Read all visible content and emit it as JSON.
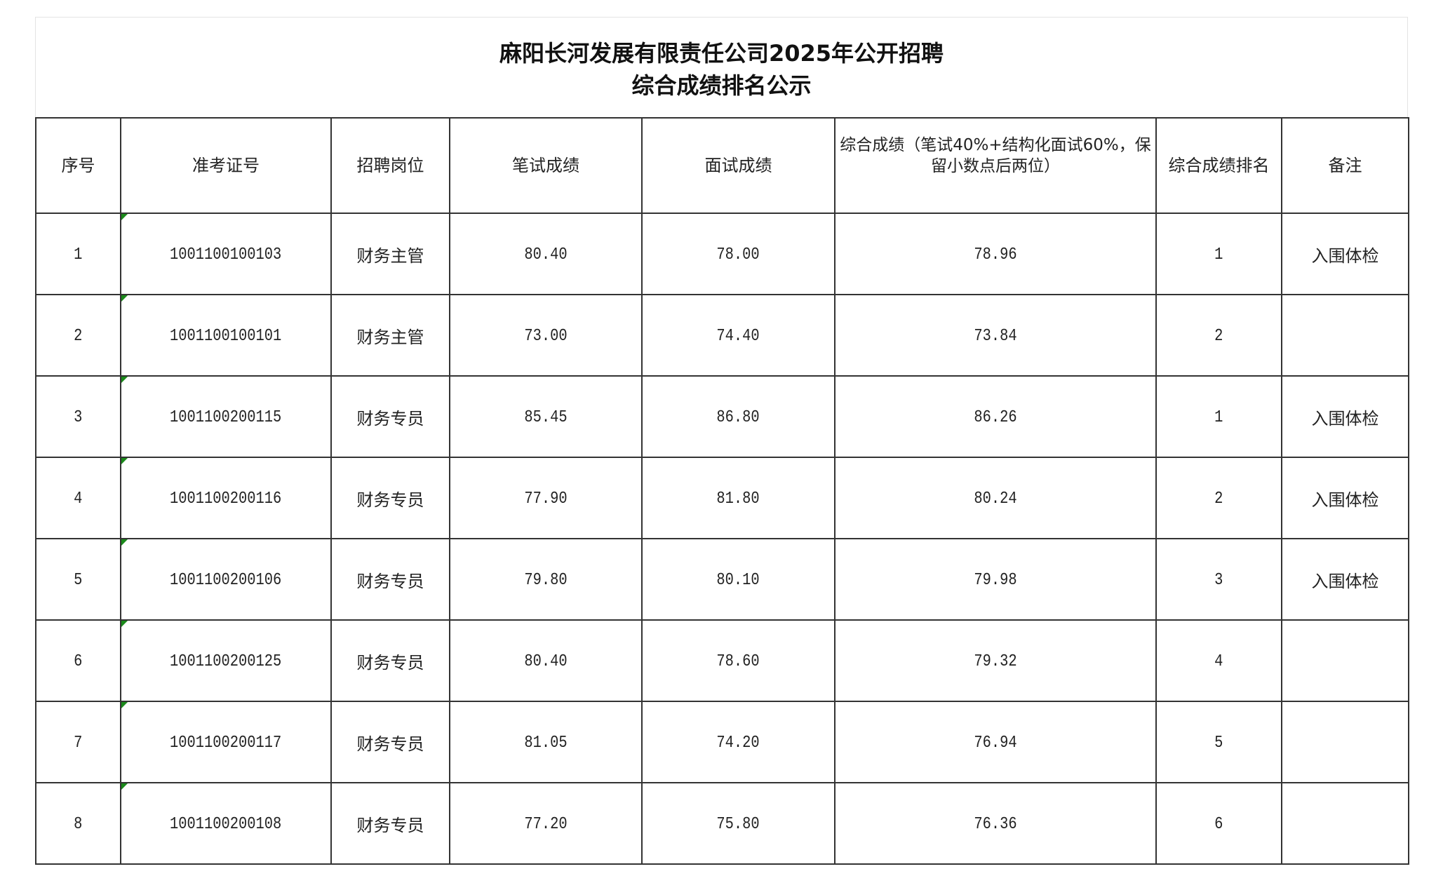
{
  "title": {
    "line1": "麻阳长河发展有限责任公司2025年公开招聘",
    "line2": "综合成绩排名公示"
  },
  "columns": [
    "序号",
    "准考证号",
    "招聘岗位",
    "笔试成绩",
    "面试成绩",
    "综合成绩（笔试40%+结构化面试60%，保留小数点后两位）",
    "综合成绩排名",
    "备注"
  ],
  "rows": [
    {
      "no": "1",
      "id": "1001100100103",
      "post": "财务主管",
      "written": "80.40",
      "interview": "78.00",
      "total": "78.96",
      "rank": "1",
      "note": "入围体检"
    },
    {
      "no": "2",
      "id": "1001100100101",
      "post": "财务主管",
      "written": "73.00",
      "interview": "74.40",
      "total": "73.84",
      "rank": "2",
      "note": ""
    },
    {
      "no": "3",
      "id": "1001100200115",
      "post": "财务专员",
      "written": "85.45",
      "interview": "86.80",
      "total": "86.26",
      "rank": "1",
      "note": "入围体检"
    },
    {
      "no": "4",
      "id": "1001100200116",
      "post": "财务专员",
      "written": "77.90",
      "interview": "81.80",
      "total": "80.24",
      "rank": "2",
      "note": "入围体检"
    },
    {
      "no": "5",
      "id": "1001100200106",
      "post": "财务专员",
      "written": "79.80",
      "interview": "80.10",
      "total": "79.98",
      "rank": "3",
      "note": "入围体检"
    },
    {
      "no": "6",
      "id": "1001100200125",
      "post": "财务专员",
      "written": "80.40",
      "interview": "78.60",
      "total": "79.32",
      "rank": "4",
      "note": ""
    },
    {
      "no": "7",
      "id": "1001100200117",
      "post": "财务专员",
      "written": "81.05",
      "interview": "74.20",
      "total": "76.94",
      "rank": "5",
      "note": ""
    },
    {
      "no": "8",
      "id": "1001100200108",
      "post": "财务专员",
      "written": "77.20",
      "interview": "75.80",
      "total": "76.36",
      "rank": "6",
      "note": ""
    }
  ],
  "colors": {
    "border": "#333333",
    "cell_marker": "#1a8a1a"
  }
}
